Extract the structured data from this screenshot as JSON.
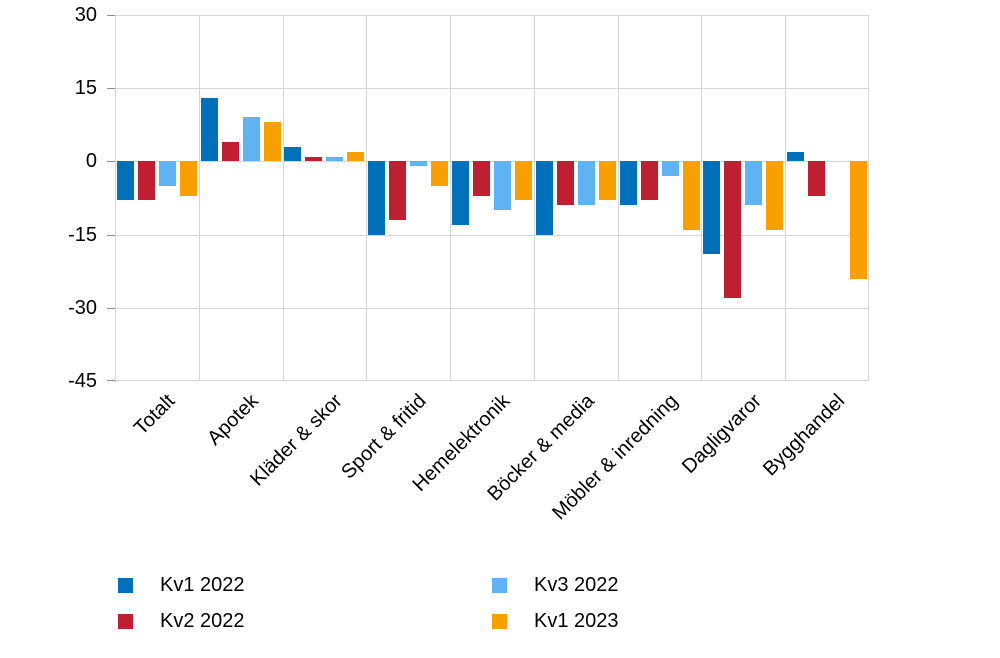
{
  "chart_data": {
    "type": "bar",
    "title": "",
    "categories": [
      "Totalt",
      "Apotek",
      "Kläder & skor",
      "Sport & fritid",
      "Hemelektronik",
      "Böcker & media",
      "Möbler & inredning",
      "Dagligvaror",
      "Bygghandel"
    ],
    "series": [
      {
        "name": "Kv1 2022",
        "color": "#0070ba",
        "values": [
          -8,
          13,
          3,
          -15,
          -13,
          -15,
          -9,
          -19,
          2
        ]
      },
      {
        "name": "Kv2 2022",
        "color": "#be2031",
        "values": [
          -8,
          4,
          1,
          -12,
          -7,
          -9,
          -8,
          -28,
          -7
        ]
      },
      {
        "name": "Kv3 2022",
        "color": "#5fb3f2",
        "values": [
          -5,
          9,
          1,
          -1,
          -10,
          -9,
          -3,
          -9,
          0
        ]
      },
      {
        "name": "Kv1 2023",
        "color": "#f7a000",
        "values": [
          -7,
          8,
          2,
          -5,
          -8,
          -8,
          -14,
          -14,
          -24
        ]
      }
    ],
    "y_ticks": [
      "30",
      "15",
      "0",
      "-15",
      "-30",
      "-45"
    ],
    "y_tick_values": [
      30,
      15,
      0,
      -15,
      -30,
      -45
    ],
    "ylim": [
      -45,
      30
    ],
    "xlabel": "",
    "ylabel": "",
    "grid": true,
    "legend_position": "bottom",
    "legend_columns": [
      [
        "Kv1 2022",
        "Kv2 2022"
      ],
      [
        "Kv3 2022",
        "Kv1 2023"
      ]
    ]
  },
  "colors": {
    "background": "#ffffff",
    "gridline": "#d6d6d6",
    "axis": "#b5b5b5",
    "tick": "#8c8c8c",
    "text": "#000000"
  }
}
